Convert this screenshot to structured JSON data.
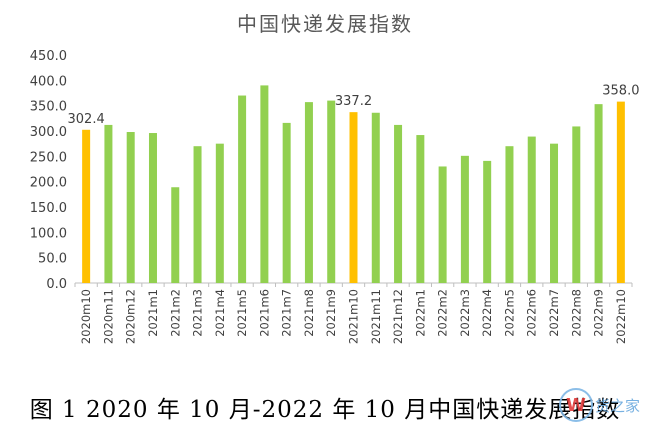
{
  "chart_data": {
    "type": "bar",
    "title": "中国快递发展指数",
    "caption": "图 1 2020 年 10 月-2022 年 10 月中国快递发展指数",
    "categories": [
      "2020m10",
      "2020m11",
      "2020m12",
      "2021m1",
      "2021m2",
      "2021m3",
      "2021m4",
      "2021m5",
      "2021m6",
      "2021m7",
      "2021m8",
      "2021m9",
      "2021m10",
      "2021m11",
      "2021m12",
      "2022m1",
      "2022m2",
      "2022m3",
      "2022m4",
      "2022m5",
      "2022m6",
      "2022m7",
      "2022m8",
      "2022m9",
      "2022m10"
    ],
    "values": [
      302.4,
      312,
      298,
      296,
      189,
      270,
      275,
      370,
      390,
      316,
      357,
      360,
      337.2,
      336,
      312,
      292,
      230,
      251,
      241,
      270,
      289,
      275,
      309,
      353,
      358.0
    ],
    "highlight_labels": {
      "0": "302.4",
      "12": "337.2",
      "24": "358.0"
    },
    "ylim": [
      0,
      450
    ],
    "yticks": [
      "0.0",
      "50.0",
      "100.0",
      "150.0",
      "200.0",
      "250.0",
      "300.0",
      "350.0",
      "400.0",
      "450.0"
    ],
    "grid": false,
    "colors": {
      "normal": "#92d050",
      "highlight": "#ffc000",
      "axis": "#bfbfbf",
      "text": "#404040"
    }
  },
  "watermark": {
    "logo_letter": "W",
    "text": "货之家"
  }
}
